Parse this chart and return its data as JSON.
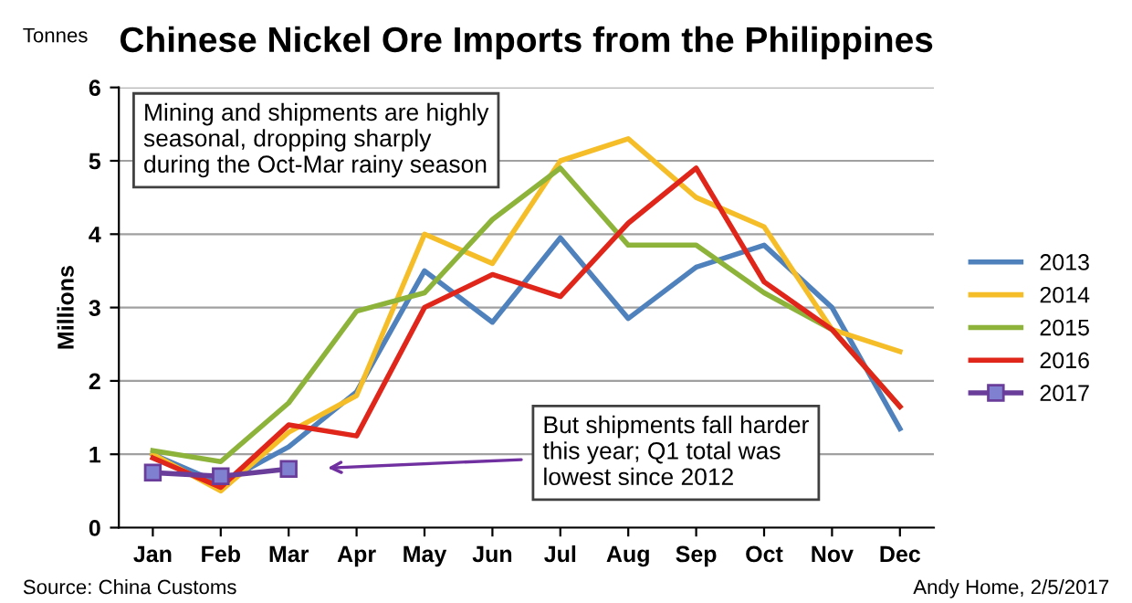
{
  "chart_data": {
    "type": "line",
    "title": "Chinese Nickel Ore Imports from the Philippines",
    "ylabel": "Millions",
    "y2label": "Tonnes",
    "categories": [
      "Jan",
      "Feb",
      "Mar",
      "Apr",
      "May",
      "Jun",
      "Jul",
      "Aug",
      "Sep",
      "Oct",
      "Nov",
      "Dec"
    ],
    "series": [
      {
        "name": "2013",
        "color": "#4f81bd",
        "values": [
          1.0,
          0.6,
          1.1,
          1.85,
          3.5,
          2.8,
          3.95,
          2.85,
          3.55,
          3.85,
          3.0,
          1.35
        ]
      },
      {
        "name": "2014",
        "color": "#f5bd27",
        "values": [
          1.0,
          0.5,
          1.3,
          1.8,
          4.0,
          3.6,
          5.0,
          5.3,
          4.5,
          4.1,
          2.7,
          2.4
        ]
      },
      {
        "name": "2015",
        "color": "#8db33a",
        "values": [
          1.05,
          0.9,
          1.7,
          2.95,
          3.2,
          4.2,
          4.9,
          3.85,
          3.85,
          3.2,
          2.7,
          1.65
        ]
      },
      {
        "name": "2016",
        "color": "#e0261b",
        "values": [
          0.95,
          0.55,
          1.4,
          1.25,
          3.0,
          3.45,
          3.15,
          4.15,
          4.9,
          3.35,
          2.7,
          1.65
        ]
      },
      {
        "name": "2017",
        "color": "#6a3d9a",
        "marker": "square",
        "values": [
          0.75,
          0.7,
          0.8,
          null,
          null,
          null,
          null,
          null,
          null,
          null,
          null,
          null
        ]
      }
    ],
    "ylim": [
      0,
      6
    ],
    "yticks": [
      0,
      1,
      2,
      3,
      4,
      5,
      6
    ],
    "grid": "y",
    "legend": "right",
    "marker": "none",
    "annotations": [
      "Mining and shipments are highly\nseasonal, dropping sharply\nduring the Oct-Mar rainy season",
      "But shipments fall harder\nthis year; Q1 total was\nlowest since 2012",
      "Source: China Customs",
      "Andy Home, 2/5/2017"
    ]
  }
}
